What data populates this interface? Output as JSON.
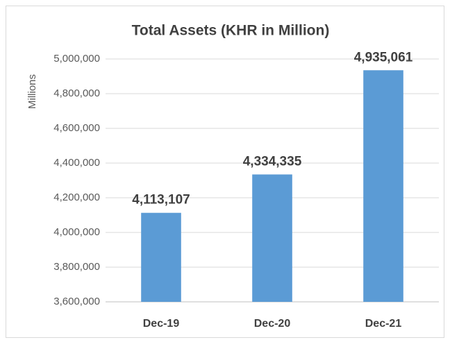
{
  "chart_data": {
    "type": "bar",
    "title": "Total Assets (KHR in Million)",
    "y_label": "Millions",
    "categories": [
      "Dec-19",
      "Dec-20",
      "Dec-21"
    ],
    "values": [
      4113107,
      4334335,
      4935061
    ],
    "value_labels": [
      "4,113,107",
      "4,334,335",
      "4,935,061"
    ],
    "color": "#5b9bd5",
    "ylim": [
      3600000,
      5000000
    ],
    "yticks": [
      {
        "value": 3600000,
        "label": "3,600,000"
      },
      {
        "value": 3800000,
        "label": "3,800,000"
      },
      {
        "value": 4000000,
        "label": "4,000,000"
      },
      {
        "value": 4200000,
        "label": "4,200,000"
      },
      {
        "value": 4400000,
        "label": "4,400,000"
      },
      {
        "value": 4600000,
        "label": "4,600,000"
      },
      {
        "value": 4800000,
        "label": "4,800,000"
      },
      {
        "value": 5000000,
        "label": "5,000,000"
      }
    ],
    "grid": true
  }
}
